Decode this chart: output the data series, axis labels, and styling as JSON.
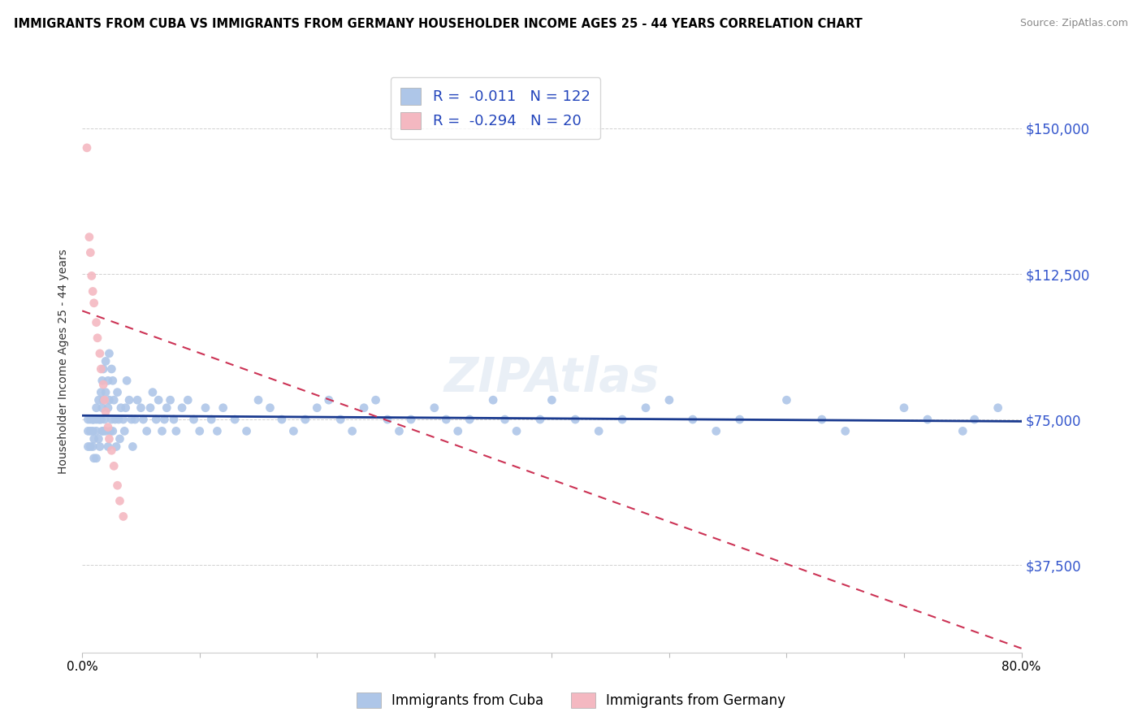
{
  "title": "IMMIGRANTS FROM CUBA VS IMMIGRANTS FROM GERMANY HOUSEHOLDER INCOME AGES 25 - 44 YEARS CORRELATION CHART",
  "source": "Source: ZipAtlas.com",
  "ylabel": "Householder Income Ages 25 - 44 years",
  "xlim": [
    0.0,
    0.8
  ],
  "ylim": [
    15000,
    165000
  ],
  "yticks": [
    37500,
    75000,
    112500,
    150000
  ],
  "ytick_labels": [
    "$37,500",
    "$75,000",
    "$112,500",
    "$150,000"
  ],
  "xticks": [
    0.0,
    0.1,
    0.2,
    0.3,
    0.4,
    0.5,
    0.6,
    0.7,
    0.8
  ],
  "xtick_labels": [
    "0.0%",
    "",
    "",
    "",
    "",
    "",
    "",
    "",
    "80.0%"
  ],
  "cuba_color": "#aec6e8",
  "germany_color": "#f4b8c1",
  "cuba_R": -0.011,
  "cuba_N": 122,
  "germany_R": -0.294,
  "germany_N": 20,
  "trend_cuba_color": "#1a3a8f",
  "trend_germany_color": "#cc3355",
  "legend_labels": [
    "Immigrants from Cuba",
    "Immigrants from Germany"
  ],
  "cuba_trend_x0": 0.0,
  "cuba_trend_y0": 76000,
  "cuba_trend_x1": 0.8,
  "cuba_trend_y1": 74500,
  "germany_trend_x0": 0.0,
  "germany_trend_y0": 103000,
  "germany_trend_x1": 0.8,
  "germany_trend_y1": 16000,
  "cuba_scatter_x": [
    0.005,
    0.005,
    0.005,
    0.007,
    0.007,
    0.007,
    0.009,
    0.009,
    0.009,
    0.009,
    0.01,
    0.01,
    0.01,
    0.012,
    0.012,
    0.012,
    0.012,
    0.014,
    0.014,
    0.014,
    0.015,
    0.015,
    0.016,
    0.016,
    0.017,
    0.017,
    0.017,
    0.018,
    0.018,
    0.018,
    0.019,
    0.02,
    0.02,
    0.02,
    0.022,
    0.022,
    0.022,
    0.023,
    0.023,
    0.024,
    0.025,
    0.025,
    0.026,
    0.026,
    0.027,
    0.028,
    0.029,
    0.03,
    0.031,
    0.032,
    0.033,
    0.035,
    0.036,
    0.037,
    0.038,
    0.04,
    0.042,
    0.043,
    0.045,
    0.047,
    0.05,
    0.052,
    0.055,
    0.058,
    0.06,
    0.063,
    0.065,
    0.068,
    0.07,
    0.072,
    0.075,
    0.078,
    0.08,
    0.085,
    0.09,
    0.095,
    0.1,
    0.105,
    0.11,
    0.115,
    0.12,
    0.13,
    0.14,
    0.15,
    0.16,
    0.17,
    0.18,
    0.19,
    0.2,
    0.21,
    0.22,
    0.23,
    0.24,
    0.25,
    0.26,
    0.27,
    0.28,
    0.3,
    0.31,
    0.32,
    0.33,
    0.35,
    0.36,
    0.37,
    0.39,
    0.4,
    0.42,
    0.44,
    0.46,
    0.48,
    0.5,
    0.52,
    0.54,
    0.56,
    0.6,
    0.63,
    0.65,
    0.7,
    0.72,
    0.75,
    0.76,
    0.78
  ],
  "cuba_scatter_y": [
    75000,
    72000,
    68000,
    75000,
    72000,
    68000,
    75000,
    75000,
    72000,
    68000,
    75000,
    70000,
    65000,
    78000,
    75000,
    72000,
    65000,
    80000,
    75000,
    70000,
    75000,
    68000,
    82000,
    75000,
    85000,
    78000,
    72000,
    88000,
    80000,
    72000,
    75000,
    90000,
    82000,
    72000,
    85000,
    78000,
    68000,
    92000,
    80000,
    72000,
    88000,
    75000,
    85000,
    72000,
    80000,
    75000,
    68000,
    82000,
    75000,
    70000,
    78000,
    75000,
    72000,
    78000,
    85000,
    80000,
    75000,
    68000,
    75000,
    80000,
    78000,
    75000,
    72000,
    78000,
    82000,
    75000,
    80000,
    72000,
    75000,
    78000,
    80000,
    75000,
    72000,
    78000,
    80000,
    75000,
    72000,
    78000,
    75000,
    72000,
    78000,
    75000,
    72000,
    80000,
    78000,
    75000,
    72000,
    75000,
    78000,
    80000,
    75000,
    72000,
    78000,
    80000,
    75000,
    72000,
    75000,
    78000,
    75000,
    72000,
    75000,
    80000,
    75000,
    72000,
    75000,
    80000,
    75000,
    72000,
    75000,
    78000,
    80000,
    75000,
    72000,
    75000,
    80000,
    75000,
    72000,
    78000,
    75000,
    72000,
    75000,
    78000
  ],
  "germany_scatter_x": [
    0.004,
    0.006,
    0.007,
    0.008,
    0.009,
    0.01,
    0.012,
    0.013,
    0.015,
    0.016,
    0.018,
    0.019,
    0.02,
    0.022,
    0.023,
    0.025,
    0.027,
    0.03,
    0.032,
    0.035
  ],
  "germany_scatter_y": [
    145000,
    122000,
    118000,
    112000,
    108000,
    105000,
    100000,
    96000,
    92000,
    88000,
    84000,
    80000,
    77000,
    73000,
    70000,
    67000,
    63000,
    58000,
    54000,
    50000
  ]
}
